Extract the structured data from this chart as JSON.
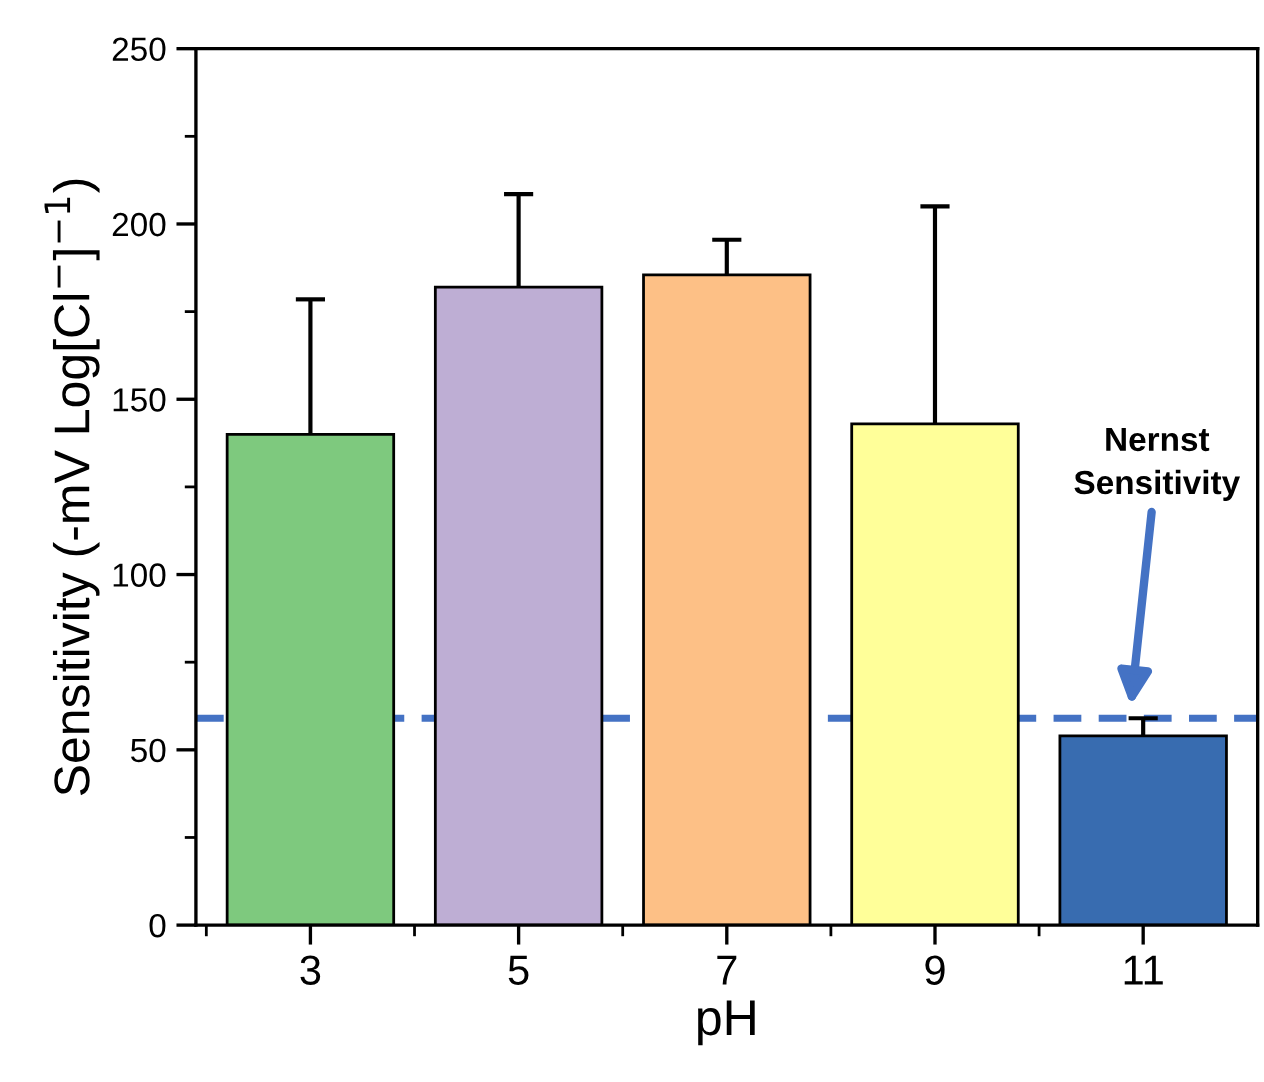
{
  "chart_data": {
    "type": "bar",
    "xlabel": "pH",
    "ylabel": "Sensitivity (-mV Log[Cl$^{−}$]$^{−1}$)",
    "categories": [
      "3",
      "5",
      "7",
      "9",
      "11"
    ],
    "values": [
      140,
      182,
      185.5,
      143,
      54
    ],
    "colors": [
      "#7ec97e",
      "#beaed4",
      "#fdc086",
      "#ffff99",
      "#386cb0"
    ],
    "errors": [
      [
        140,
        178.5
      ],
      [
        182,
        208.5
      ],
      [
        185.5,
        195.5
      ],
      [
        143,
        205
      ],
      [
        54,
        59
      ]
    ],
    "ylim": [
      0,
      250
    ],
    "yticks": [
      0,
      50,
      100,
      150,
      200,
      250
    ],
    "ref_lines": [
      {
        "axis": "y",
        "value": 59,
        "color": "#4472c4",
        "line_style": "dashed"
      }
    ],
    "annotations": [
      "Nernst\nSensitivity"
    ],
    "grid": false,
    "legend": false
  }
}
